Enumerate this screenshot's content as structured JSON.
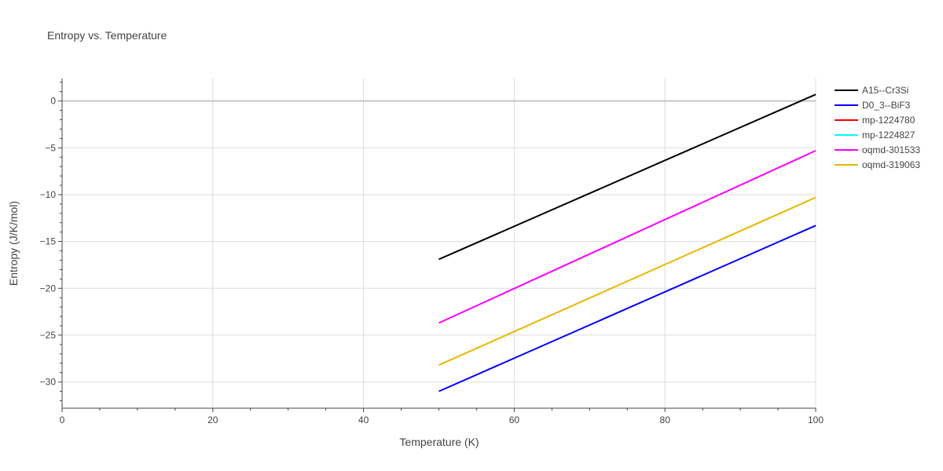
{
  "chart_data": {
    "type": "line",
    "title": "Entropy vs. Temperature",
    "xlabel": "Temperature (K)",
    "ylabel": "Entropy (J/K/mol)",
    "xlim": [
      0,
      100
    ],
    "ylim": [
      -32.8,
      2.4
    ],
    "xticks": [
      0,
      20,
      40,
      60,
      80,
      100
    ],
    "yticks": [
      0,
      -5,
      -10,
      -15,
      -20,
      -25,
      -30
    ],
    "grid": true,
    "legend_position": "top-right",
    "series": [
      {
        "name": "A15--Cr3Si",
        "color": "#000000",
        "x": [
          50,
          100
        ],
        "y": [
          -16.9,
          0.7
        ]
      },
      {
        "name": "D0_3--BiF3",
        "color": "#0000ff",
        "x": [
          50,
          100
        ],
        "y": [
          -31.0,
          -13.3
        ]
      },
      {
        "name": "mp-1224780",
        "color": "#ff0000",
        "x": [],
        "y": []
      },
      {
        "name": "mp-1224827",
        "color": "#00ffff",
        "x": [],
        "y": []
      },
      {
        "name": "oqmd-301533",
        "color": "#ff00ff",
        "x": [
          50,
          100
        ],
        "y": [
          -23.7,
          -5.3
        ]
      },
      {
        "name": "oqmd-319063",
        "color": "#e6b800",
        "x": [
          50,
          100
        ],
        "y": [
          -28.2,
          -10.3
        ]
      }
    ]
  }
}
